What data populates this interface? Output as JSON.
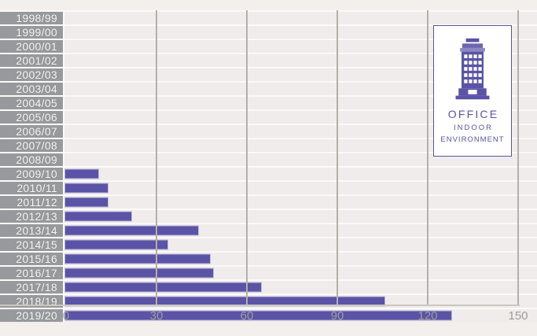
{
  "chart_data": {
    "type": "bar",
    "orientation": "horizontal",
    "title": "",
    "xlabel": "",
    "ylabel": "",
    "categories": [
      "1998/99",
      "1999/00",
      "2000/01",
      "2001/02",
      "2002/03",
      "2003/04",
      "2004/05",
      "2005/06",
      "2006/07",
      "2007/08",
      "2008/09",
      "2009/10",
      "2010/11",
      "2011/12",
      "2012/13",
      "2013/14",
      "2014/15",
      "2015/16",
      "2016/17",
      "2017/18",
      "2018/19",
      "2019/20"
    ],
    "values": [
      0,
      0,
      0,
      0,
      0,
      0,
      0,
      0,
      0,
      0,
      0,
      11,
      14,
      14,
      22,
      44,
      34,
      48,
      49,
      65,
      106,
      128
    ],
    "xlim": [
      0,
      150
    ],
    "x_ticks": [
      0,
      30,
      60,
      90,
      120,
      150
    ],
    "grid": "vertical-gridlines-every-30",
    "legend_position": "top-right",
    "bar_color": "#5b53a5",
    "bar_border_color": "#b9b4d8",
    "category_band_color": "#97999c",
    "category_text_color": "#f7f6f4",
    "row_stripe_color": "#efeceb",
    "gridline_color": "#b4b0aa",
    "tick_text_color": "#9d9d9d",
    "background_color": "#f3efed"
  },
  "legend": {
    "icon": "office-building-icon",
    "line1": "OFFICE",
    "line2": "INDOOR",
    "line3": "ENVIRONMENT",
    "border_color": "#5b53a5",
    "text_color": "#5b53a5",
    "background": "#ffffff"
  }
}
